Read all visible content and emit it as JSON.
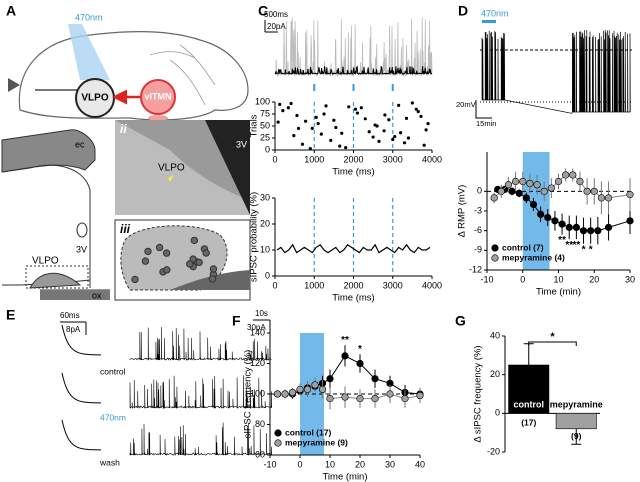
{
  "figure": {
    "panel_a": {
      "label": "A",
      "light": "470nm",
      "vlpo": "VLPO",
      "vltmn": "vlTMN"
    },
    "panel_b": {
      "label": "B",
      "sublabel": "i",
      "ec": "ec",
      "v3": "3V",
      "vlpo": "VLPO",
      "ox": "ox",
      "ii": "ii",
      "ii_v3": "3V",
      "ii_vlpo": "VLPO",
      "iii": "iii",
      "iii_ox": "ox"
    },
    "panel_c": {
      "label": "C",
      "time_scale": "500ms",
      "current_scale": "20pA"
    },
    "panel_d": {
      "label": "D",
      "light": "470nm",
      "voltage_scale": "20mV",
      "time_scale": "15min"
    },
    "panel_e": {
      "label": "E",
      "fast_time": "60ms",
      "fast_current": "8pA",
      "slow_time": "10s",
      "slow_current": "30pA",
      "rows": [
        "control",
        "470nm",
        "wash"
      ]
    },
    "panel_f": {
      "label": "F"
    },
    "panel_g": {
      "label": "G"
    }
  },
  "chart_data": [
    {
      "type": "scatter",
      "ylabel": "Trials",
      "xlabel": "Time (ms)",
      "color": "#000000",
      "x": [
        120,
        340,
        560,
        780,
        950,
        1180,
        1420,
        1650,
        1880,
        2100,
        2300,
        2550,
        2780,
        3050,
        3300,
        3500,
        3720,
        3900,
        200,
        480,
        700,
        1050,
        1300,
        1550,
        1800,
        2050,
        2400,
        2650,
        2900,
        3150,
        3400,
        3650,
        3850,
        80,
        410,
        900,
        1250,
        1700,
        2200,
        2600,
        3000,
        3350,
        3800,
        600,
        1500,
        2500,
        3600,
        1100,
        2800,
        3200
      ],
      "y": [
        95,
        88,
        72,
        60,
        45,
        33,
        20,
        8,
        90,
        77,
        65,
        52,
        40,
        28,
        15,
        98,
        70,
        55,
        82,
        30,
        12,
        68,
        92,
        47,
        5,
        85,
        38,
        18,
        63,
        93,
        25,
        80,
        42,
        58,
        97,
        3,
        75,
        35,
        88,
        50,
        22,
        66,
        10,
        45,
        62,
        27,
        85,
        55,
        73,
        36
      ],
      "xlim": [
        0,
        4000
      ],
      "ylim": [
        0,
        100
      ],
      "xticks": [
        0,
        1000,
        2000,
        3000,
        4000
      ],
      "yticks": [
        0,
        25,
        50,
        75,
        100
      ],
      "stim_times": [
        1000,
        2000,
        3000
      ],
      "stim_color": "#3a9ad9"
    },
    {
      "type": "line",
      "ylabel": "sIPSC probability (%)",
      "xlabel": "Time (ms)",
      "color": "#000000",
      "x": [
        50,
        150,
        250,
        350,
        450,
        550,
        650,
        750,
        850,
        950,
        1050,
        1150,
        1250,
        1350,
        1450,
        1550,
        1650,
        1750,
        1850,
        1950,
        2050,
        2150,
        2250,
        2350,
        2450,
        2550,
        2650,
        2750,
        2850,
        2950,
        3050,
        3150,
        3250,
        3350,
        3450,
        3550,
        3650,
        3750,
        3850,
        3950
      ],
      "values": [
        10,
        11,
        9,
        10,
        12,
        9,
        10,
        11,
        10,
        9,
        11,
        12,
        10,
        9,
        10,
        11,
        9,
        10,
        12,
        11,
        10,
        9,
        11,
        10,
        10,
        12,
        9,
        10,
        11,
        10,
        9,
        11,
        10,
        12,
        10,
        9,
        11,
        10,
        10,
        11
      ],
      "xlim": [
        0,
        4000
      ],
      "ylim": [
        0,
        30
      ],
      "xticks": [
        0,
        1000,
        2000,
        3000,
        4000
      ],
      "yticks": [
        0,
        10,
        20,
        30
      ],
      "stim_times": [
        1000,
        2000,
        3000
      ],
      "stim_color": "#3a9ad9"
    },
    {
      "type": "line",
      "ylabel": "Δ RMP (mV)",
      "xlabel": "Time (min)",
      "legend": "lower left",
      "xlim": [
        -10,
        30
      ],
      "ylim": [
        -12,
        6
      ],
      "xticks": [
        -10,
        0,
        10,
        20,
        30
      ],
      "yticks": [
        -12,
        -9,
        -6,
        -3,
        0
      ],
      "light_on": [
        0,
        7.5
      ],
      "light_color": "#5aaee6",
      "reference_line": 0,
      "series": [
        {
          "name": "control (7)",
          "color": "#000000",
          "x": [
            -7,
            -5,
            -3,
            -1,
            1,
            3,
            5,
            7,
            9,
            11,
            13,
            15,
            17,
            19,
            21,
            24,
            30
          ],
          "values": [
            0.3,
            0.3,
            0,
            -0.3,
            -1,
            -2,
            -3.5,
            -4,
            -4.5,
            -5,
            -5.5,
            -5.5,
            -6,
            -6,
            -6,
            -5.5,
            -4.5
          ],
          "errors": [
            0.5,
            0.5,
            0.6,
            0.6,
            0.8,
            1,
            1.2,
            1.3,
            1.5,
            1.6,
            1.8,
            1.8,
            2,
            2,
            2.1,
            2,
            2
          ]
        },
        {
          "name": "mepyramine (4)",
          "color": "#a0a0a0",
          "x": [
            -8,
            -6,
            -4,
            -2,
            0,
            2,
            4,
            6,
            8,
            10,
            12,
            14,
            16,
            18,
            20,
            22,
            24,
            30
          ],
          "values": [
            -1,
            0,
            1,
            1.5,
            1.5,
            1.2,
            1,
            0,
            0.5,
            1.5,
            2.5,
            2.5,
            1.5,
            0,
            0,
            -1,
            -1,
            -0.5
          ],
          "errors": [
            0.8,
            1,
            1.2,
            1.5,
            1.5,
            1.5,
            1.5,
            1.5,
            1.5,
            1.2,
            1,
            1,
            1.5,
            2,
            2,
            2.5,
            2.5,
            2.5
          ]
        }
      ],
      "annotations": [
        {
          "text": "**",
          "x": 11
        },
        {
          "text": "**",
          "x": 13
        },
        {
          "text": "**",
          "x": 15
        },
        {
          "text": "*",
          "x": 17
        },
        {
          "text": "*",
          "x": 19
        }
      ]
    },
    {
      "type": "line",
      "ylabel": "sIPSC frequency (%)",
      "xlabel": "Time (min)",
      "legend": "lower left",
      "xlim": [
        -10,
        40
      ],
      "ylim": [
        60,
        140
      ],
      "xticks": [
        -10,
        0,
        10,
        20,
        30,
        40
      ],
      "yticks": [
        60,
        80,
        100,
        120,
        140
      ],
      "light_on": [
        0,
        8
      ],
      "light_color": "#5aaee6",
      "reference_line": 100,
      "series": [
        {
          "name": "control (17)",
          "color": "#000000",
          "x": [
            -7.5,
            -5,
            -2.5,
            0,
            2.5,
            5,
            7.5,
            10,
            15,
            20,
            25,
            30,
            35,
            40
          ],
          "values": [
            100,
            100,
            100,
            102,
            104,
            105,
            107,
            110,
            125,
            120,
            110,
            107,
            101,
            100
          ],
          "errors": [
            2,
            2,
            3,
            3,
            4,
            4,
            5,
            6,
            7,
            6,
            6,
            5,
            5,
            4
          ]
        },
        {
          "name": "mepyramine (9)",
          "color": "#a0a0a0",
          "x": [
            -7.5,
            -5,
            -2.5,
            0,
            2.5,
            5,
            7.5,
            10,
            15,
            20,
            25,
            30,
            35,
            40
          ],
          "values": [
            100,
            100,
            101,
            103,
            103,
            106,
            103,
            97,
            98,
            97,
            97,
            100,
            97,
            99
          ],
          "errors": [
            2,
            3,
            3,
            4,
            5,
            5,
            6,
            7,
            7,
            6,
            6,
            6,
            6,
            5
          ]
        }
      ],
      "annotations": [
        {
          "text": "**",
          "x": 15
        },
        {
          "text": "*",
          "x": 20
        }
      ]
    },
    {
      "type": "bar",
      "ylabel": "Δ sIPSC frequency (%)",
      "categories": [
        "control",
        "mepyramine"
      ],
      "values": [
        25,
        -8
      ],
      "errors": [
        11,
        8
      ],
      "colors": [
        "#000000",
        "#a0a0a0"
      ],
      "n_labels": [
        "(17)",
        "(9)"
      ],
      "ylim": [
        -20,
        40
      ],
      "yticks": [
        -20,
        0,
        20,
        40
      ],
      "significance": "*"
    }
  ]
}
